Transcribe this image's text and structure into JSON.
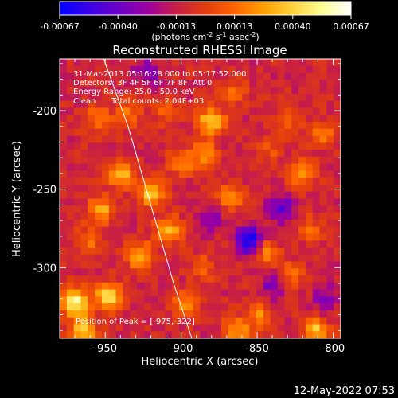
{
  "colors": {
    "background": "#000000",
    "foreground": "#ffffff",
    "limb": "#ffffff"
  },
  "colormap": [
    "#0000ff",
    "#3a00e6",
    "#6a00c8",
    "#9a00a0",
    "#c81e46",
    "#e23c0f",
    "#ff6400",
    "#ffa000",
    "#ffd23c",
    "#ffff96",
    "#ffffff"
  ],
  "colorbar": {
    "ticks": [
      "-0.00067",
      "-0.00040",
      "-0.00013",
      "0.00013",
      "0.00040",
      "0.00067"
    ],
    "unit_pre": "(photons cm",
    "unit_exp1": "-2",
    "unit_mid": " s",
    "unit_exp2": "-1",
    "unit_post": " asec",
    "unit_exp3": "-2",
    "unit_end": ")"
  },
  "annotations": {
    "time_range": "31-Mar-2013 05:16:28.000 to 05:17:52.000",
    "detectors": "Detectors: 3F 4F 5F 6F 7F 8F, Att 0",
    "energy": "Energy Range: 25.0 - 50.0 keV",
    "algorithm": "Clean",
    "counts": "Total counts: 2.04E+03",
    "peak": "Position of Peak = [-975,-322]"
  },
  "footer": {
    "date": "12-May-2022 07:53"
  },
  "chart_data": {
    "type": "heatmap",
    "title": "Reconstructed RHESSI Image",
    "xlabel": "Heliocentric X (arcsec)",
    "ylabel": "Heliocentric Y (arcsec)",
    "xlim": [
      -980,
      -795
    ],
    "ylim": [
      -345,
      -167
    ],
    "x_ticks": [
      -950,
      -900,
      -850,
      -800
    ],
    "y_ticks": [
      -200,
      -250,
      -300
    ],
    "x_tick_labels": [
      "-950",
      "-900",
      "-850",
      "-800"
    ],
    "y_tick_labels": [
      "-200",
      "-250",
      "-300"
    ],
    "value_range": [
      -0.00067,
      0.00067
    ],
    "value_unit": "photons cm^-2 s^-1 asec^-2",
    "peak": {
      "x": -975,
      "y": -322
    },
    "limb": [
      [
        -951,
        -167
      ],
      [
        -935,
        -210
      ],
      [
        -920,
        -260
      ],
      [
        -905,
        -310
      ],
      [
        -893,
        -345
      ]
    ],
    "sources": [
      {
        "x": -970,
        "y": -322,
        "value": 0.00067
      },
      {
        "x": -948,
        "y": -318,
        "value": 0.00055
      },
      {
        "x": -965,
        "y": -340,
        "value": 0.0005
      },
      {
        "x": -880,
        "y": -207,
        "value": 0.00052
      },
      {
        "x": -885,
        "y": -228,
        "value": 0.00035
      },
      {
        "x": -940,
        "y": -240,
        "value": 0.00045
      },
      {
        "x": -920,
        "y": -253,
        "value": 0.00048
      },
      {
        "x": -953,
        "y": -263,
        "value": 0.0004
      },
      {
        "x": -908,
        "y": -276,
        "value": 0.0004
      },
      {
        "x": -928,
        "y": -292,
        "value": 0.00042
      },
      {
        "x": -955,
        "y": -205,
        "value": 0.0003
      },
      {
        "x": -935,
        "y": -203,
        "value": 0.00025
      },
      {
        "x": -866,
        "y": -188,
        "value": 0.00022
      },
      {
        "x": -830,
        "y": -205,
        "value": 0.0002
      },
      {
        "x": -842,
        "y": -225,
        "value": 0.00018
      },
      {
        "x": -820,
        "y": -240,
        "value": 0.00035
      },
      {
        "x": -807,
        "y": -215,
        "value": 0.00025
      },
      {
        "x": -867,
        "y": -255,
        "value": 0.0003
      },
      {
        "x": -845,
        "y": -290,
        "value": 0.0003
      },
      {
        "x": -827,
        "y": -305,
        "value": 0.00025
      },
      {
        "x": -898,
        "y": -323,
        "value": 0.0003
      },
      {
        "x": -848,
        "y": -330,
        "value": 0.0003
      },
      {
        "x": -812,
        "y": -340,
        "value": 0.00045
      },
      {
        "x": -863,
        "y": -340,
        "value": 0.00035
      },
      {
        "x": -885,
        "y": -300,
        "value": 0.0002
      },
      {
        "x": -910,
        "y": -200,
        "value": 0.00018
      },
      {
        "x": -900,
        "y": -233,
        "value": 0.00028
      },
      {
        "x": -960,
        "y": -282,
        "value": 0.00025
      },
      {
        "x": -815,
        "y": -275,
        "value": 0.0002
      },
      {
        "x": -855,
        "y": -283,
        "value": -0.0006
      },
      {
        "x": -835,
        "y": -262,
        "value": -0.00035
      },
      {
        "x": -922,
        "y": -175,
        "value": -0.00025
      },
      {
        "x": -840,
        "y": -312,
        "value": -0.00025
      },
      {
        "x": -880,
        "y": -270,
        "value": -0.0002
      },
      {
        "x": -805,
        "y": -320,
        "value": -0.00022
      }
    ]
  }
}
